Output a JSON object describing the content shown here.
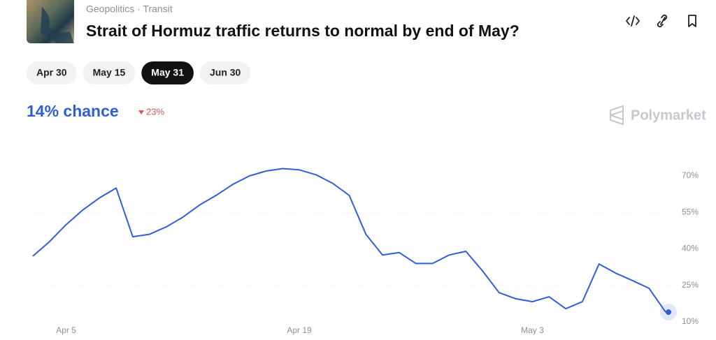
{
  "header": {
    "breadcrumb": "Geopolitics · Transit",
    "title": "Strait of Hormuz traffic returns to normal by end of May?"
  },
  "tabs": [
    {
      "label": "Apr 30",
      "selected": false
    },
    {
      "label": "May 15",
      "selected": false
    },
    {
      "label": "May 31",
      "selected": true
    },
    {
      "label": "Jun 30",
      "selected": false
    }
  ],
  "summary": {
    "chance": "14% chance",
    "change": "23%"
  },
  "brand": "Polymarket",
  "chart_data": {
    "type": "line",
    "color": "#2f5fd8",
    "grid": true,
    "x": [
      "Apr 3",
      "Apr 4",
      "Apr 5",
      "Apr 6",
      "Apr 7",
      "Apr 8",
      "Apr 9",
      "Apr 10",
      "Apr 11",
      "Apr 12",
      "Apr 13",
      "Apr 14",
      "Apr 15",
      "Apr 16",
      "Apr 17",
      "Apr 18",
      "Apr 19",
      "Apr 20",
      "Apr 21",
      "Apr 22",
      "Apr 23",
      "Apr 24",
      "Apr 25",
      "Apr 26",
      "Apr 27",
      "Apr 28",
      "Apr 29",
      "Apr 30",
      "May 1",
      "May 2",
      "May 3",
      "May 4",
      "May 5",
      "May 6",
      "May 7",
      "May 8",
      "May 9",
      "May 10",
      "May 11"
    ],
    "values": [
      37,
      43,
      50,
      56,
      61,
      65,
      45,
      46,
      49,
      53,
      58,
      62,
      66.5,
      70,
      72,
      73,
      72.5,
      70.5,
      67,
      62,
      46,
      37.5,
      38.5,
      34,
      34,
      37.5,
      39,
      31,
      22,
      19.5,
      18.3,
      20.3,
      15.4,
      18.3,
      33.8,
      30,
      27,
      23.8,
      14
    ],
    "xticks": [
      "Apr 5",
      "Apr 19",
      "May 3"
    ],
    "ylim": [
      10,
      70
    ],
    "yticks": [
      {
        "value": 10,
        "label": "10%"
      },
      {
        "value": 25,
        "label": "25%"
      },
      {
        "value": 40,
        "label": "40%"
      },
      {
        "value": 55,
        "label": "55%"
      },
      {
        "value": 70,
        "label": "70%"
      }
    ]
  }
}
